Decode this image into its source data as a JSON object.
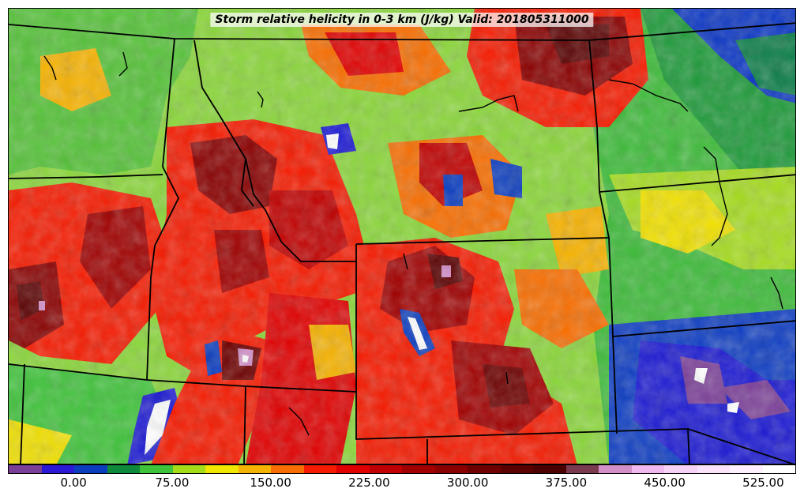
{
  "title": "Storm relative helicity in 0-3 km (J/kg) Valid: 201805311000",
  "colorbar": {
    "colors": [
      "#7b3f98",
      "#2a1ad6",
      "#0b3dbf",
      "#0f8a3a",
      "#3fc33a",
      "#a4dc1a",
      "#f0e600",
      "#f6b200",
      "#f76d00",
      "#f51a00",
      "#e00000",
      "#c00000",
      "#a00000",
      "#8a0000",
      "#6e0000",
      "#5a0000",
      "#4a0000",
      "#7a3a50",
      "#d28fc8",
      "#f0b8f0",
      "#f7d2f7",
      "#fbe3fb",
      "#fff0ff",
      "#ffffff"
    ],
    "tick_labels": [
      "0.00",
      "75.00",
      "150.00",
      "225.00",
      "300.00",
      "375.00",
      "450.00",
      "525.00"
    ]
  },
  "colors": {
    "base": "#7fd13b",
    "state_lines": "#000000",
    "water": "#000000"
  }
}
